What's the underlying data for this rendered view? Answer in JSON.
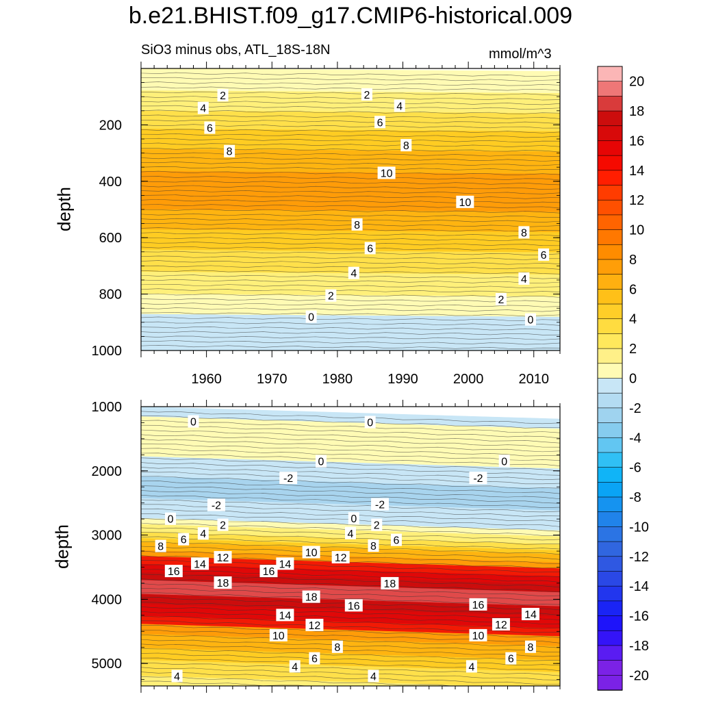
{
  "title": "b.e21.BHIST.f09_g17.CMIP6-historical.009",
  "subtitle": "SiO3 minus obs, ATL_18S-18N",
  "units": "mmol/m^3",
  "colors": {
    "levels_neg": [
      "#7b22e6",
      "#5a1cf2",
      "#3214fa",
      "#1b20f5",
      "#2645e8",
      "#2e5fe0",
      "#3a7ae8",
      "#2093f0",
      "#0aaaf7",
      "#10c0f5",
      "#4ec6f2",
      "#7bcbee",
      "#a3d6ef",
      "#c4e4f4"
    ],
    "levels_pos": [
      "#fffbb4",
      "#fff07a",
      "#ffe04a",
      "#ffcc22",
      "#ffb410",
      "#ff9c08",
      "#ff8600",
      "#ff7000",
      "#ff5800",
      "#ff3c00",
      "#f51a0a",
      "#e00a0a",
      "#cc0d0d",
      "#d93b3b",
      "#ee7777",
      "#fbb6b6"
    ]
  },
  "chart_data": [
    {
      "type": "heatmap",
      "name": "upper-panel",
      "x_range": [
        1950,
        2014
      ],
      "xticks": [
        1960,
        1970,
        1980,
        1990,
        2000,
        2010
      ],
      "ylim": [
        1000,
        0
      ],
      "yticks": [
        200,
        400,
        600,
        800,
        1000
      ],
      "ylabel": "depth",
      "contour_labels": [
        {
          "v": 2,
          "x": 1962.5,
          "y": 95
        },
        {
          "v": 2,
          "x": 1984.5,
          "y": 92
        },
        {
          "v": 4,
          "x": 1959.5,
          "y": 140
        },
        {
          "v": 4,
          "x": 1989.5,
          "y": 132
        },
        {
          "v": 6,
          "x": 1960.5,
          "y": 210
        },
        {
          "v": 6,
          "x": 1986.5,
          "y": 190
        },
        {
          "v": 8,
          "x": 1963.5,
          "y": 293
        },
        {
          "v": 8,
          "x": 1990.5,
          "y": 272
        },
        {
          "v": 10,
          "x": 1987.5,
          "y": 370
        },
        {
          "v": 10,
          "x": 1999.5,
          "y": 473
        },
        {
          "v": 8,
          "x": 1983,
          "y": 553
        },
        {
          "v": 8,
          "x": 2008.5,
          "y": 581
        },
        {
          "v": 6,
          "x": 1985,
          "y": 637
        },
        {
          "v": 6,
          "x": 2011.5,
          "y": 660
        },
        {
          "v": 4,
          "x": 1982.5,
          "y": 725
        },
        {
          "v": 4,
          "x": 2008.5,
          "y": 745
        },
        {
          "v": 2,
          "x": 1979,
          "y": 805
        },
        {
          "v": 2,
          "x": 2005,
          "y": 818
        },
        {
          "v": 0,
          "x": 1976,
          "y": 880
        },
        {
          "v": 0,
          "x": 2009.5,
          "y": 890
        }
      ]
    },
    {
      "type": "heatmap",
      "name": "lower-panel",
      "x_range": [
        1950,
        2014
      ],
      "xticks": [
        1960,
        1970,
        1980,
        1990,
        2000,
        2010
      ],
      "ylim": [
        5350,
        1000
      ],
      "yticks": [
        1000,
        2000,
        3000,
        4000,
        5000
      ],
      "ylabel": "depth",
      "contour_labels": [
        {
          "v": 0,
          "x": 1958,
          "y": 1230
        },
        {
          "v": 0,
          "x": 1985,
          "y": 1240
        },
        {
          "v": 0,
          "x": 1977.5,
          "y": 1850
        },
        {
          "v": 0,
          "x": 2005.5,
          "y": 1845
        },
        {
          "v": -2,
          "x": 1972.5,
          "y": 2110
        },
        {
          "v": -2,
          "x": 2001.5,
          "y": 2110
        },
        {
          "v": -2,
          "x": 1961.5,
          "y": 2530
        },
        {
          "v": -2,
          "x": 1986.5,
          "y": 2520
        },
        {
          "v": 0,
          "x": 1954.5,
          "y": 2745
        },
        {
          "v": 0,
          "x": 1982.5,
          "y": 2740
        },
        {
          "v": 2,
          "x": 1962.5,
          "y": 2840
        },
        {
          "v": 2,
          "x": 1986,
          "y": 2840
        },
        {
          "v": 4,
          "x": 1959.5,
          "y": 2975
        },
        {
          "v": 4,
          "x": 1982,
          "y": 2970
        },
        {
          "v": 6,
          "x": 1956.5,
          "y": 3065
        },
        {
          "v": 6,
          "x": 1989,
          "y": 3075
        },
        {
          "v": 8,
          "x": 1953,
          "y": 3170
        },
        {
          "v": 8,
          "x": 1985.5,
          "y": 3165
        },
        {
          "v": 10,
          "x": 1976,
          "y": 3265
        },
        {
          "v": 12,
          "x": 1962.5,
          "y": 3345
        },
        {
          "v": 12,
          "x": 1980.5,
          "y": 3345
        },
        {
          "v": 14,
          "x": 1959,
          "y": 3445
        },
        {
          "v": 14,
          "x": 1972,
          "y": 3445
        },
        {
          "v": 16,
          "x": 1955,
          "y": 3560
        },
        {
          "v": 16,
          "x": 1969.5,
          "y": 3560
        },
        {
          "v": 18,
          "x": 1962.5,
          "y": 3740
        },
        {
          "v": 18,
          "x": 1988,
          "y": 3750
        },
        {
          "v": 18,
          "x": 1976,
          "y": 3960
        },
        {
          "v": 16,
          "x": 1982.5,
          "y": 4095
        },
        {
          "v": 16,
          "x": 2001.5,
          "y": 4080
        },
        {
          "v": 14,
          "x": 1972,
          "y": 4245
        },
        {
          "v": 14,
          "x": 2009.5,
          "y": 4230
        },
        {
          "v": 12,
          "x": 1976.5,
          "y": 4400
        },
        {
          "v": 12,
          "x": 2005,
          "y": 4390
        },
        {
          "v": 10,
          "x": 1971,
          "y": 4560
        },
        {
          "v": 10,
          "x": 2001.5,
          "y": 4560
        },
        {
          "v": 8,
          "x": 1980,
          "y": 4740
        },
        {
          "v": 8,
          "x": 2009.5,
          "y": 4740
        },
        {
          "v": 6,
          "x": 1976.5,
          "y": 4920
        },
        {
          "v": 6,
          "x": 2006.5,
          "y": 4920
        },
        {
          "v": 4,
          "x": 1955.5,
          "y": 5195
        },
        {
          "v": 4,
          "x": 1973.5,
          "y": 5045
        },
        {
          "v": 4,
          "x": 1985.5,
          "y": 5195
        },
        {
          "v": 4,
          "x": 2000.5,
          "y": 5045
        }
      ]
    }
  ],
  "colorbar": {
    "labels": [
      "20",
      "18",
      "16",
      "14",
      "12",
      "10",
      "8",
      "6",
      "4",
      "2",
      "0",
      "-2",
      "-4",
      "-6",
      "-8",
      "-10",
      "-12",
      "-14",
      "-16",
      "-18",
      "-20"
    ]
  }
}
